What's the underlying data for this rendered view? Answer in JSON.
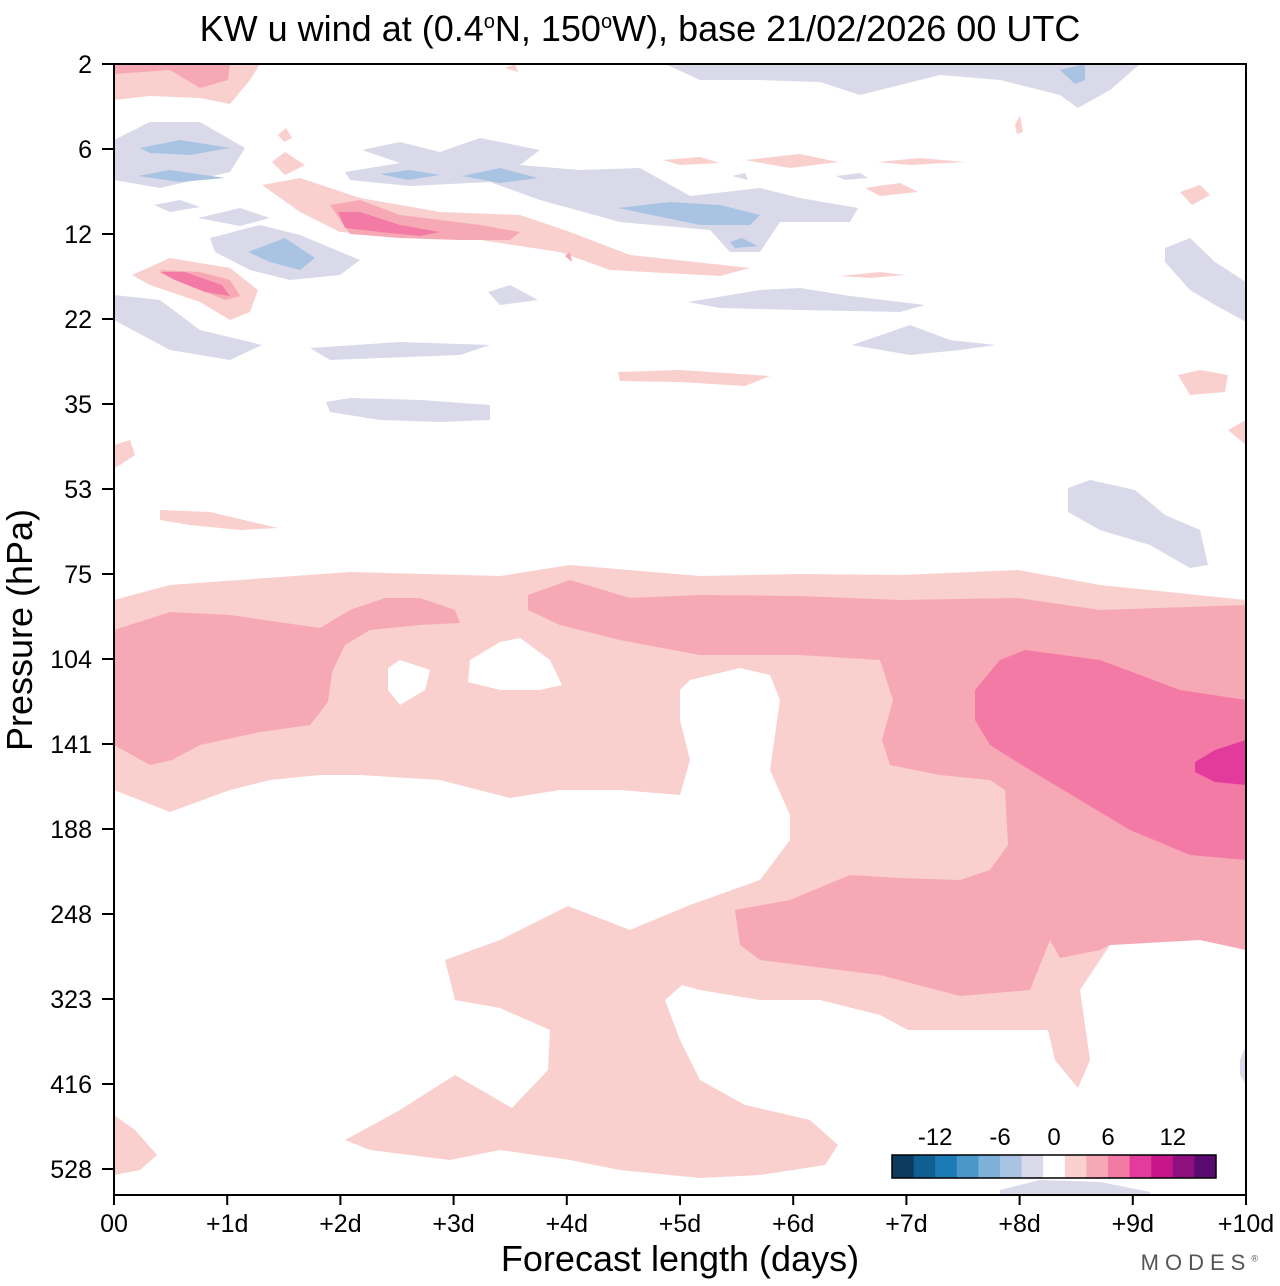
{
  "chart_data": {
    "type": "contour",
    "title": "KW u wind at (0.4°N, 150°W),  base 21/02/2026  00 UTC",
    "title_parts": {
      "prefix": "KW u wind at (0.4",
      "lat": "N, 150",
      "lon": "W),  base 21/02/2026  00 UTC",
      "deg": "o"
    },
    "xlabel": "Forecast length (days)",
    "ylabel": "Pressure (hPa)",
    "x_ticks": [
      "00",
      "+1d",
      "+2d",
      "+3d",
      "+4d",
      "+5d",
      "+6d",
      "+7d",
      "+8d",
      "+9d",
      "+10d"
    ],
    "xlim": [
      0,
      10
    ],
    "y_ticks": [
      2,
      6,
      12,
      22,
      35,
      53,
      75,
      104,
      141,
      188,
      248,
      323,
      416,
      528
    ],
    "colorbar": {
      "tick_labels": [
        "-12",
        "-6",
        "0",
        "6",
        "12"
      ],
      "levels": [
        -16,
        -14,
        -12,
        -10,
        -8,
        -6,
        -4,
        -2,
        2,
        4,
        6,
        8,
        10,
        12,
        14,
        16
      ],
      "colors": [
        "#0b3a5e",
        "#0f5f93",
        "#1b7bb7",
        "#4a97c9",
        "#7fb0d7",
        "#a8c4e2",
        "#d9d9ea",
        "#ffffff",
        "#f9d0cd",
        "#f7a8b5",
        "#f47aa6",
        "#e33b9b",
        "#c8168a",
        "#8e0f7e",
        "#5a0b72"
      ]
    },
    "regions": [
      {
        "level": "2 to 4",
        "desc": "positive u wind band 75-141 hPa all days, deep positive 188-528 hPa days 3-10"
      },
      {
        "level": "4 to 6",
        "desc": "0-2d near 104-141 hPa; 4-10d near 75-188 hPa; 6-10d near 248-323 hPa"
      },
      {
        "level": "6 to 8",
        "desc": "days 7.5-10 at 104-188 hPa"
      },
      {
        "level": "8 to 10",
        "desc": "day 9.6-10 near 141 hPa"
      },
      {
        "level": "-4 to -2",
        "desc": "scattered patches 2-35 hPa, 53-75 hPa near day 8.5-9"
      },
      {
        "level": "-6 to -4",
        "desc": "small patches near 6-16 hPa"
      }
    ]
  },
  "brand": {
    "name": "MODES",
    "mark": "®"
  }
}
